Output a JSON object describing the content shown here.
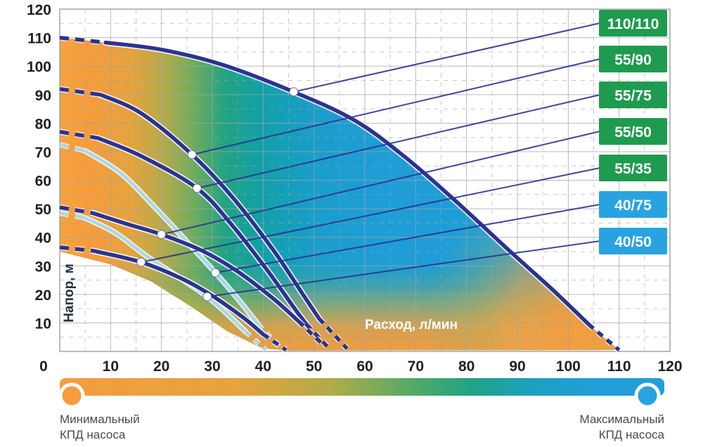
{
  "chart_data": {
    "type": "line",
    "title": "",
    "xlabel": "Расход, л/мин",
    "ylabel": "Напор, м",
    "xlim": [
      0,
      120
    ],
    "ylim": [
      0,
      120
    ],
    "xticks": [
      0,
      10,
      20,
      30,
      40,
      50,
      60,
      70,
      80,
      90,
      100,
      110,
      120
    ],
    "yticks": [
      10,
      20,
      30,
      40,
      50,
      60,
      70,
      80,
      90,
      100,
      110,
      120
    ],
    "grid": {
      "major_step": 10,
      "major_style": "solid",
      "minor_step": 5,
      "minor_style": "dashed"
    },
    "colors": {
      "curve_navy": "#2B3390",
      "curve_light_blue": "#A7D8EC",
      "badge_green": "#1E9B4F",
      "badge_blue": "#29A3E0",
      "efficiency_min_orange": "#F59C3D",
      "efficiency_mid_green": "#23A382",
      "efficiency_max_blue": "#1E9DD6",
      "grid_gray": "#9FA5A8",
      "marker_fill": "#FFFFFF"
    },
    "series": [
      {
        "name": "110/110",
        "badge_color": "#1E9B4F",
        "curve": "navy",
        "dash_start": [
          [
            0,
            110
          ],
          [
            9,
            108.3
          ]
        ],
        "points": [
          [
            9,
            108.3
          ],
          [
            20,
            105.8
          ],
          [
            32,
            100.5
          ],
          [
            46,
            91
          ],
          [
            58,
            81
          ],
          [
            68,
            68
          ],
          [
            78,
            52.5
          ],
          [
            88,
            36
          ],
          [
            97,
            21.5
          ],
          [
            104,
            9.5
          ]
        ],
        "dash_end": [
          [
            104,
            9.5
          ],
          [
            110,
            0.5
          ]
        ],
        "marker": [
          46,
          91
        ]
      },
      {
        "name": "55/90",
        "badge_color": "#1E9B4F",
        "curve": "navy",
        "dash_start": [
          [
            0,
            92
          ],
          [
            8,
            90
          ]
        ],
        "points": [
          [
            8,
            90
          ],
          [
            16,
            83.5
          ],
          [
            26,
            69
          ],
          [
            34,
            54
          ],
          [
            42,
            35.5
          ],
          [
            48,
            19.5
          ],
          [
            51,
            11.5
          ]
        ],
        "dash_end": [
          [
            51,
            11.5
          ],
          [
            56.5,
            1
          ]
        ],
        "marker": [
          26,
          69
        ]
      },
      {
        "name": "55/75",
        "badge_color": "#1E9B4F",
        "curve": "navy",
        "dash_start": [
          [
            0,
            77
          ],
          [
            7.5,
            74.8
          ]
        ],
        "points": [
          [
            7.5,
            74.8
          ],
          [
            16,
            68.5
          ],
          [
            27,
            57.2
          ],
          [
            34,
            44
          ],
          [
            41,
            28
          ],
          [
            46,
            15.5
          ],
          [
            48.5,
            9.5
          ]
        ],
        "dash_end": [
          [
            48.5,
            9.5
          ],
          [
            53,
            1
          ]
        ],
        "marker": [
          27,
          57.2
        ]
      },
      {
        "name": "55/50",
        "badge_color": "#1E9B4F",
        "curve": "navy",
        "dash_start": [
          [
            0,
            50.5
          ],
          [
            6.5,
            48.5
          ]
        ],
        "points": [
          [
            6.5,
            48.5
          ],
          [
            13,
            44.8
          ],
          [
            20,
            41
          ],
          [
            28,
            35.3
          ],
          [
            35,
            28
          ],
          [
            42,
            18.5
          ],
          [
            47,
            10.5
          ]
        ],
        "dash_end": [
          [
            47,
            10.5
          ],
          [
            52,
            2
          ]
        ],
        "marker": [
          20,
          41
        ]
      },
      {
        "name": "55/35",
        "badge_color": "#1E9B4F",
        "curve": "navy",
        "dash_start": [
          [
            0,
            36.5
          ],
          [
            6.5,
            35.3
          ]
        ],
        "points": [
          [
            6.5,
            35.3
          ],
          [
            16,
            31.3
          ],
          [
            24,
            25.5
          ],
          [
            30,
            19.5
          ],
          [
            36,
            12
          ],
          [
            40,
            6
          ]
        ],
        "dash_end": [
          [
            40,
            6
          ],
          [
            44.5,
            0.5
          ]
        ],
        "marker": [
          16,
          31.3
        ]
      },
      {
        "name": "40/75",
        "badge_color": "#29A3E0",
        "curve": "light_blue",
        "dash_start": [
          [
            0,
            72.5
          ],
          [
            5,
            70.3
          ]
        ],
        "points": [
          [
            5,
            70.3
          ],
          [
            12,
            62.5
          ],
          [
            19,
            50
          ],
          [
            25,
            38.5
          ],
          [
            30.6,
            27.6
          ],
          [
            35,
            18.5
          ],
          [
            39,
            9.5
          ]
        ],
        "dash_end": [
          [
            39,
            9.5
          ],
          [
            43.5,
            1
          ]
        ],
        "marker": [
          30.6,
          27.6
        ]
      },
      {
        "name": "40/50",
        "badge_color": "#29A3E0",
        "curve": "light_blue",
        "dash_start": [
          [
            0,
            48.5
          ],
          [
            5,
            46.8
          ]
        ],
        "points": [
          [
            5,
            46.8
          ],
          [
            11,
            41.5
          ],
          [
            17,
            33.5
          ],
          [
            23,
            26.5
          ],
          [
            29,
            19.2
          ],
          [
            33,
            13
          ],
          [
            36.5,
            7
          ]
        ],
        "dash_end": [
          [
            36.5,
            7
          ],
          [
            40.5,
            0.5
          ]
        ],
        "marker": [
          29,
          19.2
        ]
      }
    ],
    "efficiency_region": {
      "description": "color field under top curve: orange = low efficiency, blue = high efficiency",
      "lower_envelope": [
        [
          0,
          35
        ],
        [
          10,
          30.5
        ],
        [
          18,
          24.5
        ],
        [
          26,
          15.5
        ],
        [
          33,
          7
        ],
        [
          40,
          1
        ],
        [
          45,
          0.3
        ]
      ]
    },
    "legend": {
      "min_lines": [
        "Минимальный",
        "КПД насоса"
      ],
      "max_lines": [
        "Максимальный",
        "КПД насоса"
      ]
    }
  }
}
